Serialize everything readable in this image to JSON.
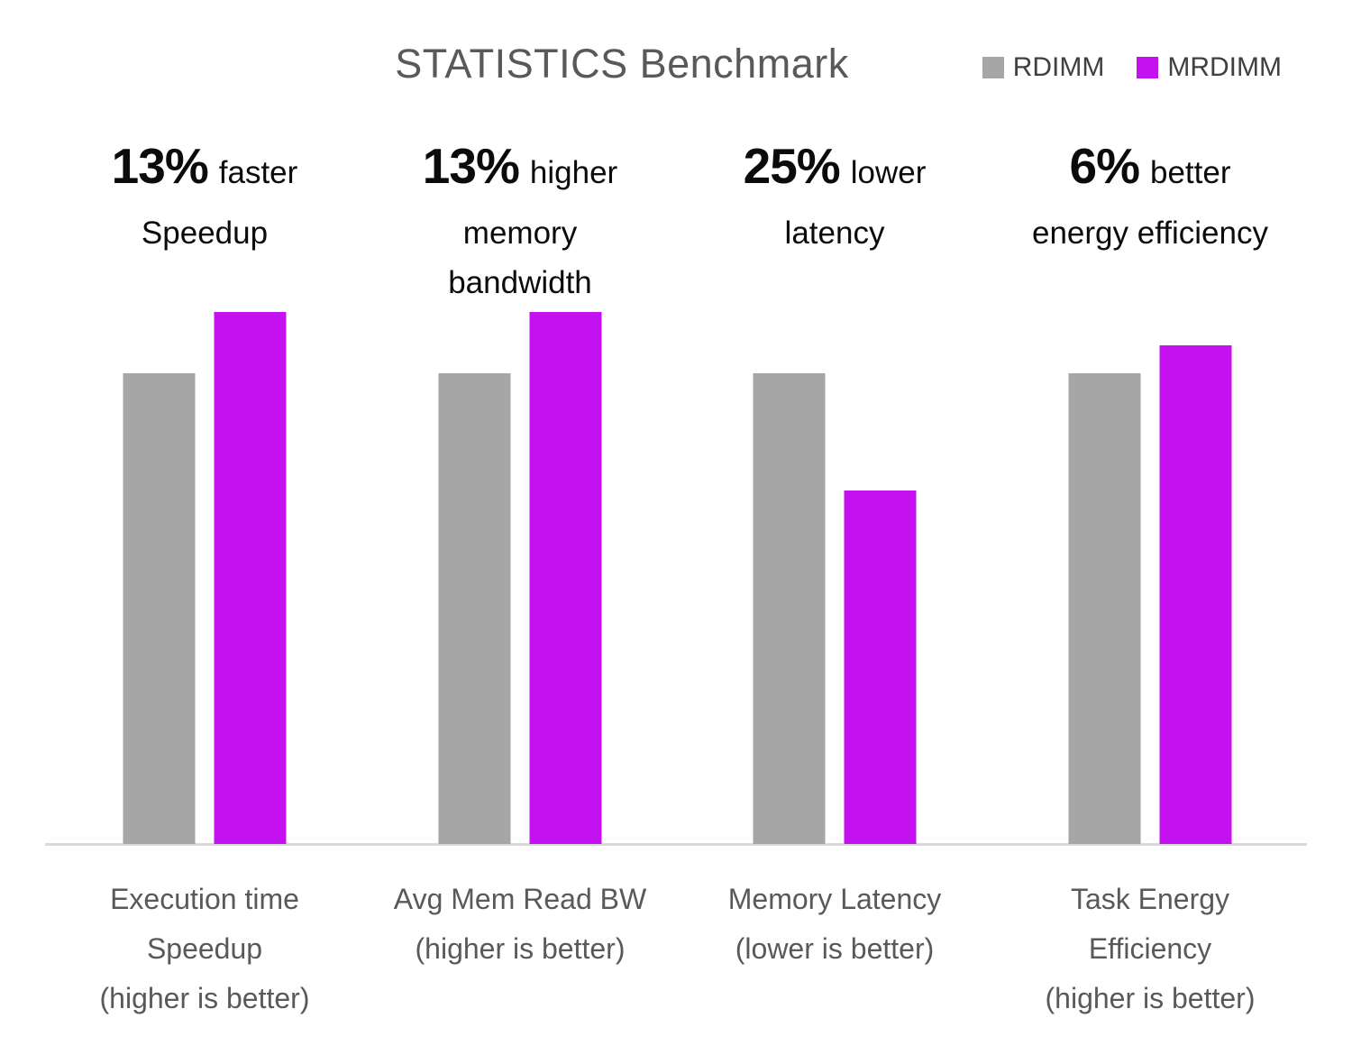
{
  "chart_data": {
    "type": "bar",
    "title": "STATISTICS Benchmark",
    "categories": [
      "Execution time Speedup (higher is better)",
      "Avg Mem Read BW (higher is better)",
      "Memory Latency (lower is better)",
      "Task Energy Efficiency (higher is better)"
    ],
    "series": [
      {
        "name": "RDIMM",
        "color": "#a6a6a6",
        "values": [
          1.0,
          1.0,
          1.0,
          1.0
        ]
      },
      {
        "name": "MRDIMM",
        "color": "#c411f0",
        "values": [
          1.13,
          1.13,
          0.75,
          1.06
        ]
      }
    ],
    "value_scale": "relative to RDIMM = 1.0",
    "ylim": [
      0,
      1.2
    ],
    "grid": false,
    "y_axis": "hidden",
    "legend_position": "top-right",
    "annotations": [
      "13% faster Speedup",
      "13% higher memory bandwidth",
      "25% lower latency",
      "6% better energy efficiency"
    ],
    "groups": [
      {
        "annotation": {
          "highlight": "13%",
          "suffix": "faster",
          "extra_lines": [
            "Speedup"
          ]
        },
        "label_lines": [
          "Execution time",
          "Speedup",
          "(higher is better)"
        ]
      },
      {
        "annotation": {
          "highlight": "13%",
          "suffix": "higher",
          "extra_lines": [
            "memory",
            "bandwidth"
          ]
        },
        "label_lines": [
          "Avg Mem Read BW",
          "(higher is better)"
        ]
      },
      {
        "annotation": {
          "highlight": "25%",
          "suffix": "lower",
          "extra_lines": [
            "latency"
          ]
        },
        "label_lines": [
          "Memory Latency",
          "(lower is better)"
        ]
      },
      {
        "annotation": {
          "highlight": "6%",
          "suffix": "better",
          "extra_lines": [
            "energy efficiency"
          ]
        },
        "label_lines": [
          "Task Energy",
          "Efficiency",
          "(higher is better)"
        ]
      }
    ]
  },
  "legend": {
    "items": [
      {
        "label": "RDIMM",
        "color": "#a6a6a6"
      },
      {
        "label": "MRDIMM",
        "color": "#c411f0"
      }
    ]
  },
  "colors": {
    "rdimm": "#a6a6a6",
    "mrdimm": "#c411f0",
    "title_text": "#595959",
    "legend_text": "#404040",
    "annotation_text": "#0b0b0b",
    "category_text": "#595959",
    "axis_line": "#d9d9d9"
  }
}
